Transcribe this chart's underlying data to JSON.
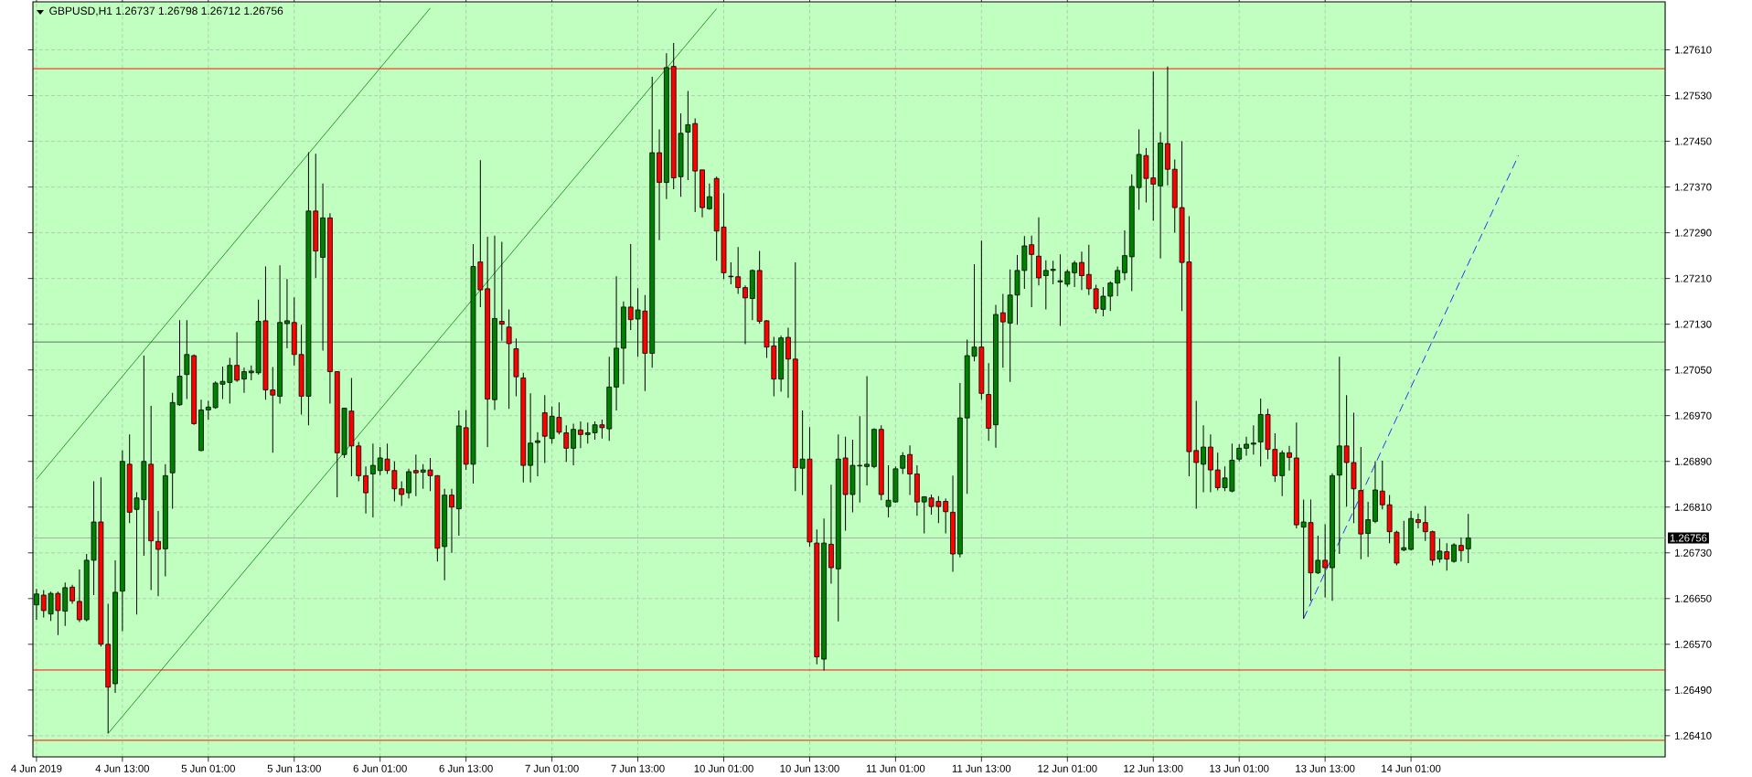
{
  "chart_data": {
    "type": "candlestick",
    "title": "GBPUSD,H1 1.26737 1.26798 1.26712 1.26756",
    "categories": [
      "4 Jun 2019",
      null,
      null,
      null,
      null,
      null,
      null,
      null,
      null,
      null,
      null,
      null,
      "4 Jun 13:00",
      null,
      null,
      null,
      null,
      null,
      null,
      null,
      null,
      null,
      null,
      null,
      "5 Jun 01:00",
      null,
      null,
      null,
      null,
      null,
      null,
      null,
      null,
      null,
      null,
      null,
      "5 Jun 13:00",
      null,
      null,
      null,
      null,
      null,
      null,
      null,
      null,
      null,
      null,
      null,
      "6 Jun 01:00",
      null,
      null,
      null,
      null,
      null,
      null,
      null,
      null,
      null,
      null,
      null,
      "6 Jun 13:00",
      null,
      null,
      null,
      null,
      null,
      null,
      null,
      null,
      null,
      null,
      null,
      "7 Jun 01:00",
      null,
      null,
      null,
      null,
      null,
      null,
      null,
      null,
      null,
      null,
      null,
      "7 Jun 13:00",
      null,
      null,
      null,
      null,
      null,
      null,
      null,
      null,
      null,
      null,
      null,
      "10 Jun 01:00",
      null,
      null,
      null,
      null,
      null,
      null,
      null,
      null,
      null,
      null,
      null,
      "10 Jun 13:00",
      null,
      null,
      null,
      null,
      null,
      null,
      null,
      null,
      null,
      null,
      null,
      "11 Jun 01:00",
      null,
      null,
      null,
      null,
      null,
      null,
      null,
      null,
      null,
      null,
      null,
      "11 Jun 13:00",
      null,
      null,
      null,
      null,
      null,
      null,
      null,
      null,
      null,
      null,
      null,
      "12 Jun 01:00",
      null,
      null,
      null,
      null,
      null,
      null,
      null,
      null,
      null,
      null,
      null,
      "12 Jun 13:00",
      null,
      null,
      null,
      null,
      null,
      null,
      null,
      null,
      null,
      null,
      null,
      "13 Jun 01:00",
      null,
      null,
      null,
      null,
      null,
      null,
      null,
      null,
      null,
      null,
      null,
      "13 Jun 13:00",
      null,
      null,
      null,
      null,
      null,
      null,
      null,
      null,
      null,
      null,
      null,
      "14 Jun 01:00",
      null,
      null,
      null,
      null,
      null,
      null,
      null,
      null,
      null,
      null,
      null,
      null,
      null,
      null,
      null,
      null,
      null,
      null,
      null,
      null,
      null,
      null,
      null,
      null,
      null,
      null,
      null,
      null,
      null,
      null,
      null,
      null,
      null,
      null,
      null
    ],
    "ohlc": [
      [
        1.26639,
        1.26667,
        1.26613,
        1.26658
      ],
      [
        1.26656,
        1.26665,
        1.26617,
        1.26629
      ],
      [
        1.26623,
        1.26662,
        1.26611,
        1.26659
      ],
      [
        1.26659,
        1.26662,
        1.26586,
        1.26629
      ],
      [
        1.26628,
        1.26678,
        1.26602,
        1.26669
      ],
      [
        1.2667,
        1.26674,
        1.26641,
        1.26646
      ],
      [
        1.26645,
        1.26701,
        1.26609,
        1.26613
      ],
      [
        1.26613,
        1.26728,
        1.2661,
        1.26717
      ],
      [
        1.26717,
        1.26855,
        1.26656,
        1.26784
      ],
      [
        1.26784,
        1.26862,
        1.26566,
        1.2657
      ],
      [
        1.2657,
        1.26641,
        1.26414,
        1.26495
      ],
      [
        1.26501,
        1.26717,
        1.26485,
        1.26661
      ],
      [
        1.26663,
        1.26909,
        1.26593,
        1.2689
      ],
      [
        1.26885,
        1.26937,
        1.26782,
        1.26801
      ],
      [
        1.26806,
        1.26836,
        1.26622,
        1.26826
      ],
      [
        1.26823,
        1.27075,
        1.26725,
        1.2689
      ],
      [
        1.26885,
        1.26987,
        1.26665,
        1.26751
      ],
      [
        1.2675,
        1.26803,
        1.26654,
        1.26736
      ],
      [
        1.26737,
        1.26885,
        1.26689,
        1.26865
      ],
      [
        1.2687,
        1.2701,
        1.26807,
        1.26993
      ],
      [
        1.26989,
        1.27137,
        1.26987,
        1.27039
      ],
      [
        1.27042,
        1.27137,
        1.26999,
        1.27077
      ],
      [
        1.27075,
        1.27077,
        1.26954,
        1.26956
      ],
      [
        1.26909,
        1.26998,
        1.26908,
        1.2698
      ],
      [
        1.2698,
        1.26996,
        1.26963,
        1.26985
      ],
      [
        1.26984,
        1.2703,
        1.26982,
        1.27027
      ],
      [
        1.27025,
        1.27056,
        1.26999,
        1.2703
      ],
      [
        1.27028,
        1.27071,
        1.26991,
        1.27058
      ],
      [
        1.27058,
        1.27116,
        1.27029,
        1.27032
      ],
      [
        1.27034,
        1.27054,
        1.2701,
        1.27047
      ],
      [
        1.27045,
        1.27058,
        1.27032,
        1.27048
      ],
      [
        1.27045,
        1.27173,
        1.27042,
        1.27135
      ],
      [
        1.27136,
        1.27231,
        1.26998,
        1.27015
      ],
      [
        1.27015,
        1.27055,
        1.26905,
        1.27006
      ],
      [
        1.27004,
        1.27233,
        1.26991,
        1.27133
      ],
      [
        1.27131,
        1.27209,
        1.27088,
        1.27136
      ],
      [
        1.27133,
        1.27177,
        1.27058,
        1.27077
      ],
      [
        1.27077,
        1.27129,
        1.26972,
        1.27004
      ],
      [
        1.27004,
        1.27431,
        1.26953,
        1.27328
      ],
      [
        1.27328,
        1.27428,
        1.27211,
        1.27258
      ],
      [
        1.27247,
        1.27376,
        1.27084,
        1.27316
      ],
      [
        1.27316,
        1.27324,
        1.26991,
        1.27047
      ],
      [
        1.27047,
        1.27047,
        1.26827,
        1.26905
      ],
      [
        1.26902,
        1.26984,
        1.26896,
        1.26983
      ],
      [
        1.26978,
        1.27036,
        1.26864,
        1.26917
      ],
      [
        1.26917,
        1.26924,
        1.26855,
        1.26865
      ],
      [
        1.26865,
        1.26881,
        1.26799,
        1.26835
      ],
      [
        1.26868,
        1.26921,
        1.26792,
        1.26883
      ],
      [
        1.26874,
        1.26915,
        1.26866,
        1.26896
      ],
      [
        1.26894,
        1.26921,
        1.26868,
        1.26874
      ],
      [
        1.26874,
        1.2689,
        1.2682,
        1.26842
      ],
      [
        1.26842,
        1.26855,
        1.26812,
        1.26832
      ],
      [
        1.26835,
        1.26877,
        1.26825,
        1.26872
      ],
      [
        1.26874,
        1.26902,
        1.26829,
        1.2687
      ],
      [
        1.26871,
        1.26885,
        1.26842,
        1.26875
      ],
      [
        1.26875,
        1.26896,
        1.26838,
        1.26865
      ],
      [
        1.26865,
        1.26866,
        1.26715,
        1.26738
      ],
      [
        1.26741,
        1.26842,
        1.26682,
        1.26831
      ],
      [
        1.26831,
        1.26842,
        1.2673,
        1.2681
      ],
      [
        1.26807,
        1.26979,
        1.2676,
        1.26952
      ],
      [
        1.26949,
        1.2698,
        1.26875,
        1.26885
      ],
      [
        1.26885,
        1.2727,
        1.26851,
        1.27231
      ],
      [
        1.27239,
        1.27417,
        1.2716,
        1.2719
      ],
      [
        1.27192,
        1.27283,
        1.26915,
        1.26999
      ],
      [
        1.26998,
        1.27285,
        1.2698,
        1.2714
      ],
      [
        1.27135,
        1.27274,
        1.27101,
        1.2713
      ],
      [
        1.27125,
        1.27156,
        1.26982,
        1.27096
      ],
      [
        1.27087,
        1.27105,
        1.27004,
        1.27038
      ],
      [
        1.27036,
        1.27045,
        1.26853,
        1.26883
      ],
      [
        1.26883,
        1.27009,
        1.26853,
        1.26922
      ],
      [
        1.26923,
        1.26941,
        1.26864,
        1.26926
      ],
      [
        1.26975,
        1.27006,
        1.26887,
        1.26934
      ],
      [
        1.2693,
        1.26986,
        1.26921,
        1.26969
      ],
      [
        1.26967,
        1.26993,
        1.26937,
        1.26941
      ],
      [
        1.2694,
        1.26953,
        1.26889,
        1.26913
      ],
      [
        1.26913,
        1.26956,
        1.26883,
        1.26946
      ],
      [
        1.26945,
        1.2696,
        1.26913,
        1.26937
      ],
      [
        1.26937,
        1.26958,
        1.26921,
        1.2694
      ],
      [
        1.2694,
        1.2696,
        1.26928,
        1.26954
      ],
      [
        1.26954,
        1.26963,
        1.2693,
        1.26949
      ],
      [
        1.26947,
        1.27073,
        1.26926,
        1.2702
      ],
      [
        1.2702,
        1.27214,
        1.26979,
        1.27088
      ],
      [
        1.27088,
        1.2717,
        1.27025,
        1.2716
      ],
      [
        1.2716,
        1.2727,
        1.2712,
        1.27138
      ],
      [
        1.27139,
        1.27193,
        1.27073,
        1.27155
      ],
      [
        1.27153,
        1.27181,
        1.27013,
        1.27079
      ],
      [
        1.27079,
        1.27563,
        1.27054,
        1.2743
      ],
      [
        1.2743,
        1.27471,
        1.27277,
        1.27378
      ],
      [
        1.27378,
        1.27604,
        1.27349,
        1.27579
      ],
      [
        1.27581,
        1.27622,
        1.27366,
        1.27386
      ],
      [
        1.27388,
        1.27499,
        1.27353,
        1.27464
      ],
      [
        1.27466,
        1.27538,
        1.27382,
        1.27479
      ],
      [
        1.27481,
        1.2749,
        1.27326,
        1.27398
      ],
      [
        1.274,
        1.274,
        1.27317,
        1.27334
      ],
      [
        1.27332,
        1.27376,
        1.2733,
        1.27353
      ],
      [
        1.27385,
        1.27388,
        1.27241,
        1.27293
      ],
      [
        1.273,
        1.27359,
        1.27209,
        1.2722
      ],
      [
        1.27214,
        1.27238,
        1.272,
        1.27213
      ],
      [
        1.27213,
        1.27265,
        1.27183,
        1.27194
      ],
      [
        1.27194,
        1.27198,
        1.27095,
        1.27176
      ],
      [
        1.27175,
        1.27226,
        1.27137,
        1.27224
      ],
      [
        1.27224,
        1.27258,
        1.27131,
        1.27135
      ],
      [
        1.27136,
        1.27137,
        1.27071,
        1.2709
      ],
      [
        1.27092,
        1.27108,
        1.27004,
        1.27034
      ],
      [
        1.27034,
        1.2711,
        1.27012,
        1.27106
      ],
      [
        1.27107,
        1.27124,
        1.27001,
        1.27069
      ],
      [
        1.27069,
        1.27238,
        1.26838,
        1.26879
      ],
      [
        1.26878,
        1.26979,
        1.26831,
        1.26894
      ],
      [
        1.26894,
        1.2695,
        1.26741,
        1.26749
      ],
      [
        1.26747,
        1.26771,
        1.26535,
        1.26548
      ],
      [
        1.26544,
        1.2679,
        1.26524,
        1.26747
      ],
      [
        1.26745,
        1.26849,
        1.26676,
        1.26704
      ],
      [
        1.26702,
        1.26937,
        1.2661,
        1.26894
      ],
      [
        1.26896,
        1.26933,
        1.26769,
        1.26832
      ],
      [
        1.26832,
        1.26928,
        1.26801,
        1.26883
      ],
      [
        1.26882,
        1.26969,
        1.26818,
        1.26883
      ],
      [
        1.26881,
        1.27039,
        1.26848,
        1.26885
      ],
      [
        1.26881,
        1.26948,
        1.26878,
        1.26946
      ],
      [
        1.26946,
        1.26953,
        1.26822,
        1.26832
      ],
      [
        1.26811,
        1.26883,
        1.26792,
        1.26822
      ],
      [
        1.26819,
        1.26881,
        1.26818,
        1.26877
      ],
      [
        1.26878,
        1.26906,
        1.26868,
        1.269
      ],
      [
        1.26902,
        1.26918,
        1.26831,
        1.26868
      ],
      [
        1.26868,
        1.26883,
        1.26795,
        1.26819
      ],
      [
        1.26819,
        1.26829,
        1.26764,
        1.26828
      ],
      [
        1.26826,
        1.26832,
        1.26797,
        1.26811
      ],
      [
        1.2682,
        1.26829,
        1.26782,
        1.26811
      ],
      [
        1.2682,
        1.26825,
        1.26764,
        1.26802
      ],
      [
        1.26801,
        1.26865,
        1.26697,
        1.26728
      ],
      [
        1.26728,
        1.27027,
        1.26722,
        1.26966
      ],
      [
        1.26966,
        1.27103,
        1.26833,
        1.27075
      ],
      [
        1.27074,
        1.27235,
        1.27065,
        1.2709
      ],
      [
        1.2709,
        1.27276,
        1.26998,
        1.27009
      ],
      [
        1.27007,
        1.27062,
        1.26926,
        1.26948
      ],
      [
        1.26954,
        1.27164,
        1.26914,
        1.27147
      ],
      [
        1.2715,
        1.27183,
        1.27054,
        1.27134
      ],
      [
        1.27132,
        1.27226,
        1.27029,
        1.27181
      ],
      [
        1.27181,
        1.27251,
        1.27129,
        1.27224
      ],
      [
        1.27224,
        1.27284,
        1.27192,
        1.27267
      ],
      [
        1.27269,
        1.27285,
        1.2716,
        1.27252
      ],
      [
        1.27249,
        1.27317,
        1.27198,
        1.27211
      ],
      [
        1.27215,
        1.27242,
        1.27156,
        1.27224
      ],
      [
        1.27224,
        1.27241,
        1.272,
        1.27226
      ],
      [
        1.27204,
        1.27252,
        1.27127,
        1.27206
      ],
      [
        1.272,
        1.27226,
        1.27196,
        1.27222
      ],
      [
        1.2722,
        1.27241,
        1.27195,
        1.27237
      ],
      [
        1.27238,
        1.27257,
        1.2719,
        1.27215
      ],
      [
        1.27217,
        1.27269,
        1.27181,
        1.27192
      ],
      [
        1.27192,
        1.27199,
        1.27149,
        1.27157
      ],
      [
        1.27156,
        1.27195,
        1.27144,
        1.27179
      ],
      [
        1.27179,
        1.27205,
        1.27153,
        1.27202
      ],
      [
        1.27202,
        1.27231,
        1.27179,
        1.27224
      ],
      [
        1.2722,
        1.27294,
        1.27207,
        1.2725
      ],
      [
        1.27248,
        1.27392,
        1.27188,
        1.27371
      ],
      [
        1.27369,
        1.27471,
        1.2733,
        1.27427
      ],
      [
        1.27425,
        1.27438,
        1.27343,
        1.27385
      ],
      [
        1.27386,
        1.27572,
        1.27311,
        1.27375
      ],
      [
        1.27372,
        1.27466,
        1.27245,
        1.27447
      ],
      [
        1.27446,
        1.27581,
        1.27373,
        1.27401
      ],
      [
        1.27401,
        1.27418,
        1.2729,
        1.27334
      ],
      [
        1.27334,
        1.2745,
        1.27153,
        1.27238
      ],
      [
        1.27239,
        1.27319,
        1.26864,
        1.26907
      ],
      [
        1.26909,
        1.26996,
        1.26807,
        1.26888
      ],
      [
        1.26885,
        1.26953,
        1.26836,
        1.26915
      ],
      [
        1.26915,
        1.26937,
        1.26836,
        1.26875
      ],
      [
        1.26875,
        1.26905,
        1.26839,
        1.26844
      ],
      [
        1.26844,
        1.26881,
        1.26838,
        1.26861
      ],
      [
        1.26838,
        1.26921,
        1.26836,
        1.26892
      ],
      [
        1.26894,
        1.2692,
        1.2689,
        1.26913
      ],
      [
        1.26913,
        1.26933,
        1.269,
        1.2692
      ],
      [
        1.2692,
        1.26953,
        1.26902,
        1.26922
      ],
      [
        1.26924,
        1.27,
        1.26881,
        1.26972
      ],
      [
        1.26972,
        1.26982,
        1.26894,
        1.26911
      ],
      [
        1.26911,
        1.26939,
        1.26854,
        1.26865
      ],
      [
        1.26865,
        1.26909,
        1.26829,
        1.26905
      ],
      [
        1.26905,
        1.26917,
        1.26874,
        1.26897
      ],
      [
        1.26896,
        1.26958,
        1.26773,
        1.26779
      ],
      [
        1.26775,
        1.26823,
        1.26615,
        1.26784
      ],
      [
        1.26783,
        1.26823,
        1.26646,
        1.26695
      ],
      [
        1.26695,
        1.2676,
        1.26693,
        1.26717
      ],
      [
        1.26717,
        1.2678,
        1.26652,
        1.26704
      ],
      [
        1.26704,
        1.26869,
        1.26646,
        1.26865
      ],
      [
        1.26866,
        1.27073,
        1.26728,
        1.26917
      ],
      [
        1.26917,
        1.27006,
        1.26811,
        1.26888
      ],
      [
        1.26888,
        1.26975,
        1.26782,
        1.26842
      ],
      [
        1.26839,
        1.26915,
        1.26719,
        1.26763
      ],
      [
        1.26764,
        1.26819,
        1.26723,
        1.26788
      ],
      [
        1.26785,
        1.2689,
        1.26782,
        1.2684
      ],
      [
        1.26838,
        1.26891,
        1.26806,
        1.26814
      ],
      [
        1.26814,
        1.26831,
        1.26747,
        1.26767
      ],
      [
        1.26766,
        1.26769,
        1.26708,
        1.26712
      ],
      [
        1.26735,
        1.26786,
        1.26733,
        1.26739
      ],
      [
        1.26736,
        1.26803,
        1.26734,
        1.2679
      ],
      [
        1.26788,
        1.26799,
        1.26773,
        1.26783
      ],
      [
        1.26783,
        1.26812,
        1.26751,
        1.26767
      ],
      [
        1.26767,
        1.26769,
        1.26708,
        1.26717
      ],
      [
        1.26719,
        1.26755,
        1.26713,
        1.26733
      ],
      [
        1.26732,
        1.26747,
        1.26699,
        1.26719
      ],
      [
        1.26715,
        1.26747,
        1.26713,
        1.26744
      ],
      [
        1.26743,
        1.26757,
        1.26715,
        1.26734
      ],
      [
        1.26737,
        1.26798,
        1.26712,
        1.26756
      ],
      null,
      null,
      null,
      null,
      null,
      null,
      null,
      null,
      null,
      null,
      null,
      null,
      null,
      null,
      null,
      null,
      null,
      null,
      null,
      null,
      null,
      null,
      null,
      null,
      null,
      null,
      null
    ],
    "series": [
      {
        "type": "line",
        "color": "#008000",
        "values": [
          1.26859,
          null,
          null,
          null,
          null,
          null,
          null,
          null,
          null,
          null,
          null,
          null,
          null,
          null,
          null,
          null,
          null,
          null,
          null,
          null,
          null,
          null,
          null,
          null,
          null,
          null,
          null,
          null,
          null,
          null,
          null,
          null,
          null,
          null,
          null,
          null,
          null,
          null,
          null,
          null,
          null,
          null,
          null,
          null,
          null,
          null,
          null,
          null,
          null,
          null,
          null,
          null,
          null,
          null,
          null,
          1.27683,
          null,
          null,
          null,
          null,
          null,
          null,
          null,
          null,
          null,
          null,
          null,
          null,
          null,
          null,
          null,
          null,
          null,
          null,
          null,
          null,
          null,
          null,
          null,
          null,
          null,
          null,
          null,
          null,
          null,
          null,
          null,
          null,
          null,
          null,
          null,
          null,
          null,
          null,
          null,
          null,
          null,
          null,
          null,
          null,
          null,
          null,
          null,
          null,
          null,
          null,
          null,
          null,
          null,
          null,
          null,
          null,
          null,
          null,
          null,
          null,
          null,
          null,
          null,
          null,
          null,
          null,
          null,
          null,
          null,
          null,
          null,
          null,
          null,
          null,
          null,
          null,
          null,
          null,
          null,
          null,
          null,
          null,
          null,
          null,
          null,
          null,
          null,
          null,
          null,
          null,
          null,
          null,
          null,
          null,
          null,
          null,
          null,
          null,
          null,
          null,
          null,
          null,
          null,
          null,
          null,
          null,
          null,
          null,
          null,
          null,
          null,
          null,
          null,
          null,
          null,
          null,
          null,
          null,
          null,
          null,
          null,
          null,
          null,
          null,
          null,
          null,
          null,
          null,
          null,
          null,
          null,
          null,
          null,
          null,
          null,
          null,
          null,
          null,
          null,
          null,
          null,
          null,
          null,
          null,
          null,
          null,
          null,
          null,
          null,
          null,
          null,
          null,
          null,
          null,
          null,
          null,
          null,
          null,
          null,
          null,
          null,
          null,
          null,
          null,
          null,
          null,
          null,
          null,
          null,
          null,
          null,
          null
        ]
      },
      {
        "type": "line",
        "color": "#008000",
        "values": [
          null,
          null,
          null,
          null,
          null,
          null,
          null,
          null,
          null,
          null,
          1.26414,
          null,
          null,
          null,
          null,
          null,
          null,
          null,
          null,
          null,
          null,
          null,
          null,
          null,
          null,
          null,
          null,
          null,
          null,
          null,
          null,
          null,
          null,
          null,
          null,
          null,
          null,
          null,
          null,
          null,
          null,
          null,
          null,
          null,
          null,
          null,
          null,
          null,
          null,
          null,
          null,
          null,
          null,
          null,
          null,
          null,
          null,
          null,
          null,
          null,
          null,
          null,
          null,
          null,
          null,
          null,
          null,
          null,
          null,
          null,
          null,
          null,
          null,
          null,
          null,
          null,
          null,
          null,
          null,
          null,
          null,
          null,
          null,
          null,
          null,
          null,
          null,
          null,
          null,
          null,
          null,
          null,
          null,
          null,
          null,
          1.27682,
          null,
          null,
          null,
          null,
          null,
          null,
          null,
          null,
          null,
          null,
          null,
          null,
          null,
          null,
          null,
          null,
          null,
          null,
          null,
          null,
          null,
          null,
          null,
          null,
          null,
          null,
          null,
          null,
          null,
          null,
          null,
          null,
          null,
          null,
          null,
          null,
          null,
          null,
          null,
          null,
          null,
          null,
          null,
          null,
          null,
          null,
          null,
          null,
          null,
          null,
          null,
          null,
          null,
          null,
          null,
          null,
          null,
          null,
          null,
          null,
          null,
          null,
          null,
          null,
          null,
          null,
          null,
          null,
          null,
          null,
          null,
          null,
          null,
          null,
          null,
          null,
          null,
          null,
          null,
          null,
          null,
          null,
          null,
          null,
          null,
          null,
          null,
          null,
          null,
          null,
          null,
          null,
          null,
          null,
          null,
          null,
          null,
          null,
          null,
          null,
          null,
          null,
          null,
          null,
          null,
          null,
          null,
          null,
          null,
          null,
          null,
          null,
          null,
          null,
          null,
          null,
          null,
          null,
          null,
          null,
          null,
          null,
          null,
          null,
          null,
          null,
          null,
          null,
          null,
          null,
          null,
          null
        ]
      },
      {
        "type": "line",
        "color": "#0000ff",
        "line_style": "dashed",
        "values": [
          null,
          null,
          null,
          null,
          null,
          null,
          null,
          null,
          null,
          null,
          null,
          null,
          null,
          null,
          null,
          null,
          null,
          null,
          null,
          null,
          null,
          null,
          null,
          null,
          null,
          null,
          null,
          null,
          null,
          null,
          null,
          null,
          null,
          null,
          null,
          null,
          null,
          null,
          null,
          null,
          null,
          null,
          null,
          null,
          null,
          null,
          null,
          null,
          null,
          null,
          null,
          null,
          null,
          null,
          null,
          null,
          null,
          null,
          null,
          null,
          null,
          null,
          null,
          null,
          null,
          null,
          null,
          null,
          null,
          null,
          null,
          null,
          null,
          null,
          null,
          null,
          null,
          null,
          null,
          null,
          null,
          null,
          null,
          null,
          null,
          null,
          null,
          null,
          null,
          null,
          null,
          null,
          null,
          null,
          null,
          null,
          null,
          null,
          null,
          null,
          null,
          null,
          null,
          null,
          null,
          null,
          null,
          null,
          null,
          null,
          null,
          null,
          null,
          null,
          null,
          null,
          null,
          null,
          null,
          null,
          null,
          null,
          null,
          null,
          null,
          null,
          null,
          null,
          null,
          null,
          null,
          null,
          null,
          null,
          null,
          null,
          null,
          null,
          null,
          null,
          null,
          null,
          null,
          null,
          null,
          null,
          null,
          null,
          null,
          null,
          null,
          null,
          null,
          null,
          null,
          null,
          null,
          null,
          null,
          null,
          null,
          null,
          null,
          null,
          null,
          null,
          null,
          null,
          null,
          null,
          null,
          null,
          null,
          null,
          null,
          null,
          null,
          1.26615,
          null,
          null,
          null,
          null,
          null,
          null,
          null,
          null,
          null,
          null,
          null,
          null,
          null,
          null,
          null,
          null,
          null,
          null,
          null,
          null,
          null,
          null,
          null,
          null,
          null,
          null,
          null,
          null,
          null,
          1.27425,
          null,
          null,
          null,
          null,
          null,
          null,
          null,
          null,
          null,
          null,
          null,
          null,
          null,
          null,
          null,
          null,
          null,
          null,
          null,
          null
        ]
      }
    ],
    "ylim": [
      1.26373,
      1.27694
    ],
    "yticks": [
      {
        "value": 1.2641,
        "label": "1.26410"
      },
      {
        "value": 1.2649,
        "label": "1.26490"
      },
      {
        "value": 1.2657,
        "label": "1.26570"
      },
      {
        "value": 1.2665,
        "label": "1.26650"
      },
      {
        "value": 1.2673,
        "label": "1.26730"
      },
      {
        "value": 1.2681,
        "label": "1.26810"
      },
      {
        "value": 1.2689,
        "label": "1.26890"
      },
      {
        "value": 1.2697,
        "label": "1.26970"
      },
      {
        "value": 1.2705,
        "label": "1.27050"
      },
      {
        "value": 1.2713,
        "label": "1.27130"
      },
      {
        "value": 1.2721,
        "label": "1.27210"
      },
      {
        "value": 1.2729,
        "label": "1.27290"
      },
      {
        "value": 1.2737,
        "label": "1.27370"
      },
      {
        "value": 1.2745,
        "label": "1.27450"
      },
      {
        "value": 1.2753,
        "label": "1.27530"
      },
      {
        "value": 1.2761,
        "label": "1.27610"
      }
    ],
    "ref_lines": [
      {
        "axis": "y",
        "value": 1.27577,
        "color": "#ff0000"
      },
      {
        "axis": "y",
        "value": 1.27099,
        "color": "#1a1a1a"
      },
      {
        "axis": "y",
        "value": 1.26525,
        "color": "#ff0000"
      },
      {
        "axis": "y",
        "value": 1.26402,
        "color": "#ff0000"
      },
      {
        "axis": "y",
        "value": 1.26756,
        "label": "1.26756",
        "color": "#a8a8a8"
      }
    ],
    "grid": true
  }
}
